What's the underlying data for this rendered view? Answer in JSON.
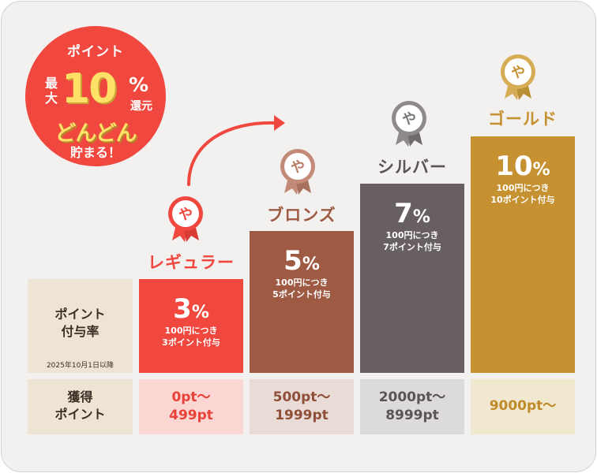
{
  "promo": {
    "line1": "ポイント",
    "saidai": "最大",
    "big": "10",
    "percent": "%",
    "kangen": "還元",
    "dondon": "どんどん",
    "tamaru": "貯まる！"
  },
  "row_labels": {
    "rate": "ポイント付与率",
    "rate_line1": "ポイント",
    "rate_line2": "付与率",
    "rate_note": "2025年10月1日以降",
    "points_line1": "獲得",
    "points_line2": "ポイント"
  },
  "tiers": [
    {
      "name": "レギュラー",
      "rate_num": "3",
      "rate_unit": "%",
      "desc1": "100円につき",
      "desc2": "3ポイント付与",
      "points_line1": "0pt〜",
      "points_line2": "499pt",
      "color": "#f0473e",
      "points_bg": "#fcd6d3",
      "points_color": "#e94238"
    },
    {
      "name": "ブロンズ",
      "rate_num": "5",
      "rate_unit": "%",
      "desc1": "100円につき",
      "desc2": "5ポイント付与",
      "points_line1": "500pt〜",
      "points_line2": "1999pt",
      "color": "#9e5a43",
      "points_bg": "#e9dcd6",
      "points_color": "#8f4f39"
    },
    {
      "name": "シルバー",
      "rate_num": "7",
      "rate_unit": "%",
      "desc1": "100円につき",
      "desc2": "7ポイント付与",
      "points_line1": "2000pt〜",
      "points_line2": "8999pt",
      "color": "#675f63",
      "points_bg": "#dcdadb",
      "points_color": "#5a5357"
    },
    {
      "name": "ゴールド",
      "rate_num": "10",
      "rate_unit": "%",
      "desc1": "100円につき",
      "desc2": "10ポイント付与",
      "points_line1": "9000pt〜",
      "points_line2": "",
      "color": "#c69131",
      "points_bg": "#f1e8d0",
      "points_color": "#c08a2a"
    }
  ],
  "medal_glyph": "や"
}
